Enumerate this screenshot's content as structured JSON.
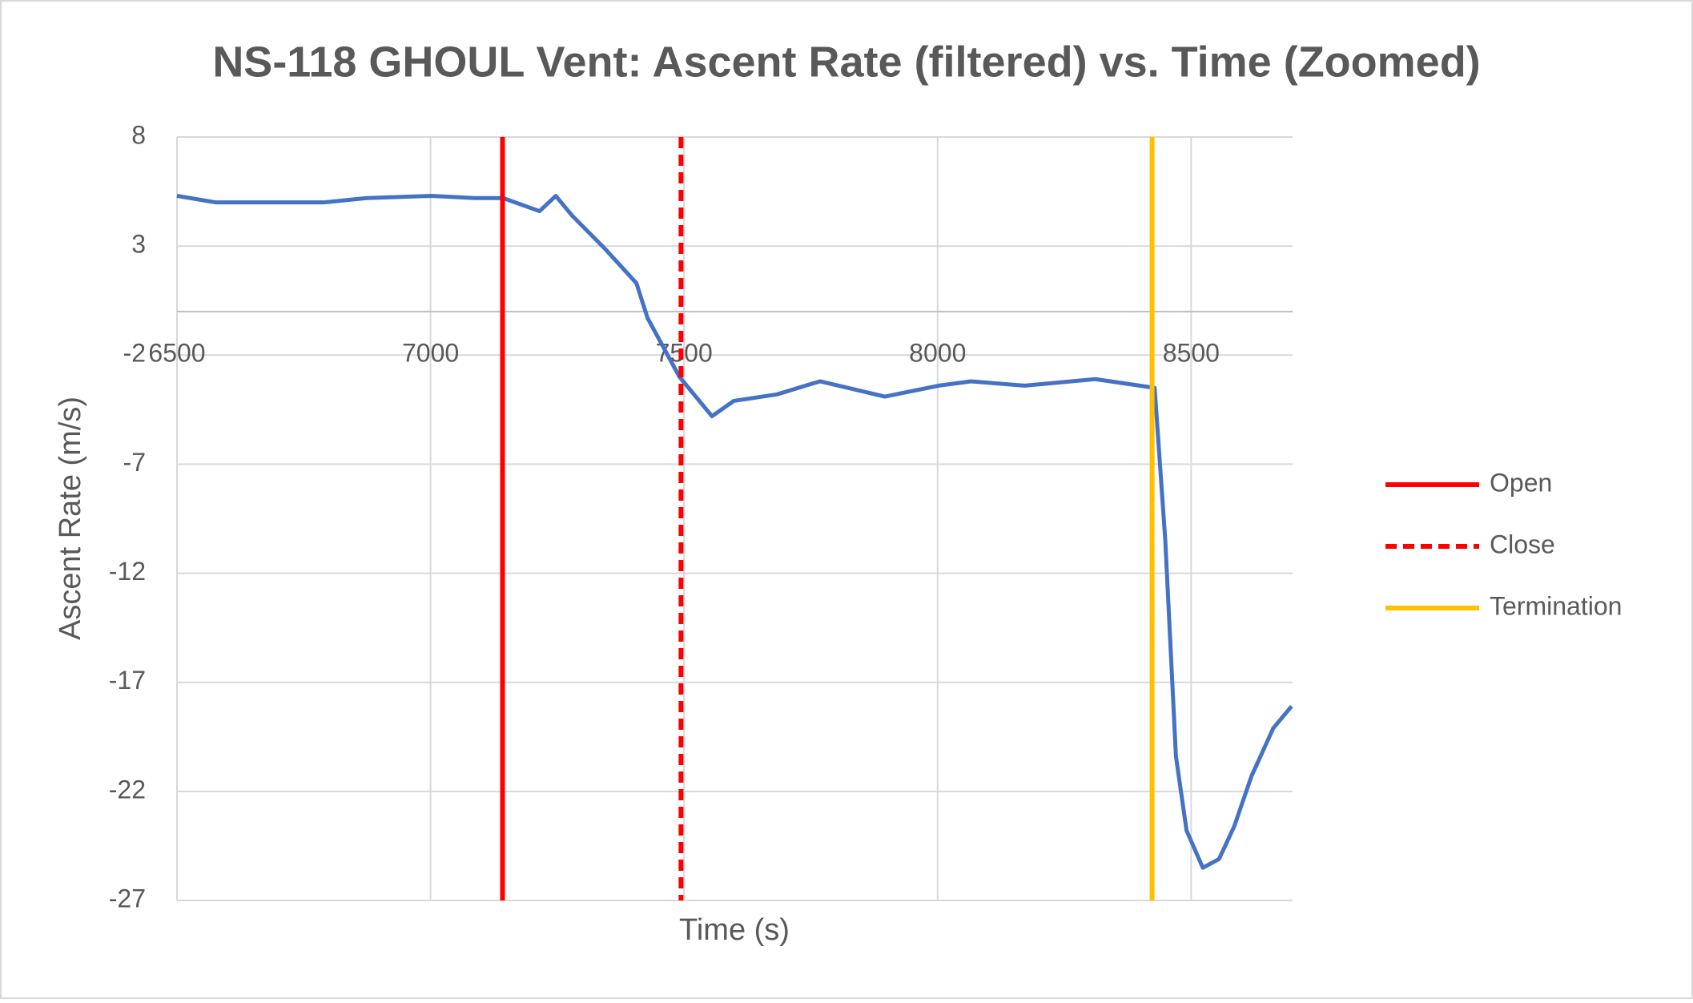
{
  "chart_data": {
    "type": "line",
    "title": "NS-118 GHOUL Vent: Ascent Rate (filtered) vs. Time (Zoomed)",
    "x_label": "Time (s)",
    "y_label": "Ascent Rate (m/s)",
    "xlim": [
      6500,
      8700
    ],
    "ylim": [
      -27,
      8
    ],
    "xticks": [
      6500,
      7000,
      7500,
      8000,
      8500
    ],
    "yticks": [
      8,
      3,
      -2,
      -7,
      -12,
      -17,
      -22,
      -27
    ],
    "grid": true,
    "legend": "right",
    "series": [
      {
        "color": "#4472c4",
        "x": [
          6500,
          6577,
          6683,
          6789,
          6874,
          7002,
          7087,
          7143,
          7215,
          7247,
          7279,
          7343,
          7406,
          7428,
          7491,
          7555,
          7598,
          7683,
          7768,
          7896,
          8002,
          8066,
          8172,
          8311,
          8428,
          8449,
          8470,
          8491,
          8523,
          8555,
          8585,
          8619,
          8662,
          8698
        ],
        "values": [
          5.3,
          5.0,
          5.0,
          5.0,
          5.2,
          5.3,
          5.2,
          5.2,
          4.6,
          5.3,
          4.4,
          2.9,
          1.3,
          -0.3,
          -3.0,
          -4.8,
          -4.1,
          -3.8,
          -3.2,
          -3.9,
          -3.4,
          -3.2,
          -3.4,
          -3.1,
          -3.5,
          -10.5,
          -20.4,
          -23.8,
          -25.5,
          -25.1,
          -23.6,
          -21.3,
          -19.1,
          -18.1
        ]
      }
    ],
    "vlines": [
      {
        "name": "Open",
        "color": "#ff0000",
        "x": 7142,
        "dashed": false
      },
      {
        "name": "Close",
        "color": "#ff0000",
        "x": 7494,
        "dashed": true
      },
      {
        "name": "Termination",
        "color": "#ffc000",
        "x": 8423,
        "dashed": false
      }
    ]
  }
}
